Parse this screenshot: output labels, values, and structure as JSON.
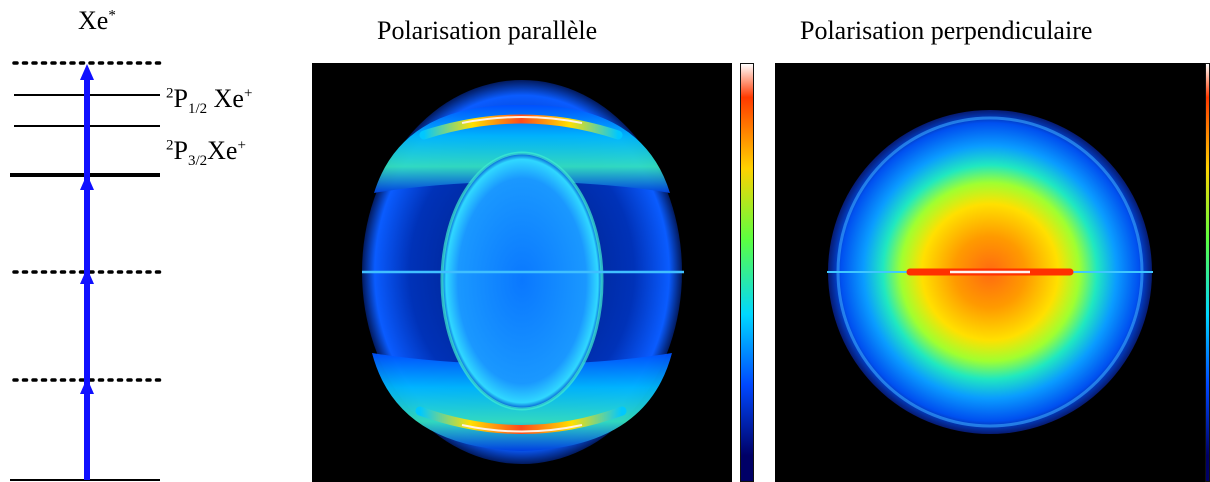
{
  "energy_diagram": {
    "title": "Xe",
    "title_superscript": "*",
    "levels": [
      {
        "label": {
          "pre": "2",
          "main": "P",
          "sub": "1/2",
          "post": "Xe",
          "post_sup": "+"
        }
      },
      {
        "label": {
          "pre": "2",
          "main": "P",
          "sub": "3/2",
          "post": "Xe",
          "post_sup": "+"
        }
      }
    ],
    "arrow_color": "#1010ff"
  },
  "images": [
    {
      "title": "Polarisation parallèle"
    },
    {
      "title": "Polarisation perpendiculaire"
    }
  ],
  "colorbar_colors": [
    "#ff3a00",
    "#ffd200",
    "#5cff40",
    "#00d8ff",
    "#0048ff",
    "#000066"
  ]
}
